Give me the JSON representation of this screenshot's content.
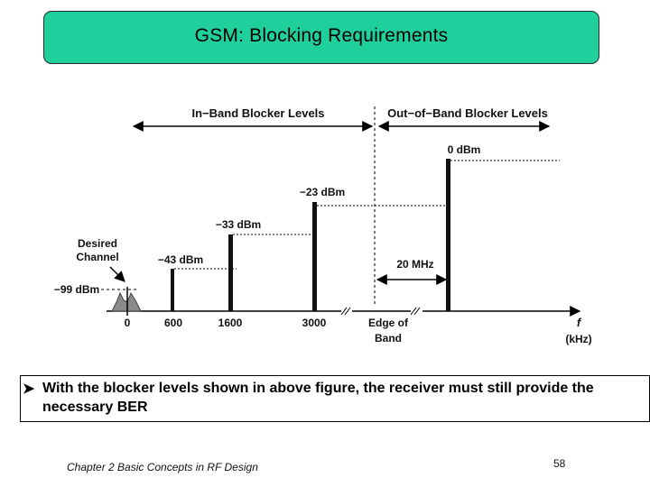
{
  "slide": {
    "title": "GSM: Blocking Requirements",
    "bullet_icon": "arrow-bullet-icon",
    "bullet_text": "With the blocker levels shown in above figure, the receiver must still provide the necessary BER",
    "footer": "Chapter 2 Basic Concepts in RF Design",
    "page_number": "58",
    "accent_color": "#1fd09c"
  },
  "diagram": {
    "regions": {
      "in_band": "In−Band Blocker Levels",
      "out_of_band": "Out−of−Band Blocker Levels"
    },
    "desired_channel": {
      "label_line1": "Desired",
      "label_line2": "Channel",
      "level": "−99 dBm"
    },
    "blockers": [
      {
        "level": "−43 dBm",
        "frequency": "600"
      },
      {
        "level": "−33 dBm",
        "frequency": "1600"
      },
      {
        "level": "−23 dBm",
        "frequency": "3000"
      },
      {
        "level": "0 dBm",
        "frequency": ""
      }
    ],
    "axis": {
      "origin_label": "0",
      "edge_label_line1": "Edge of",
      "edge_label_line2": "Band",
      "x_symbol": "f",
      "x_unit": "(kHz)"
    },
    "offset_label": "20 MHz"
  }
}
